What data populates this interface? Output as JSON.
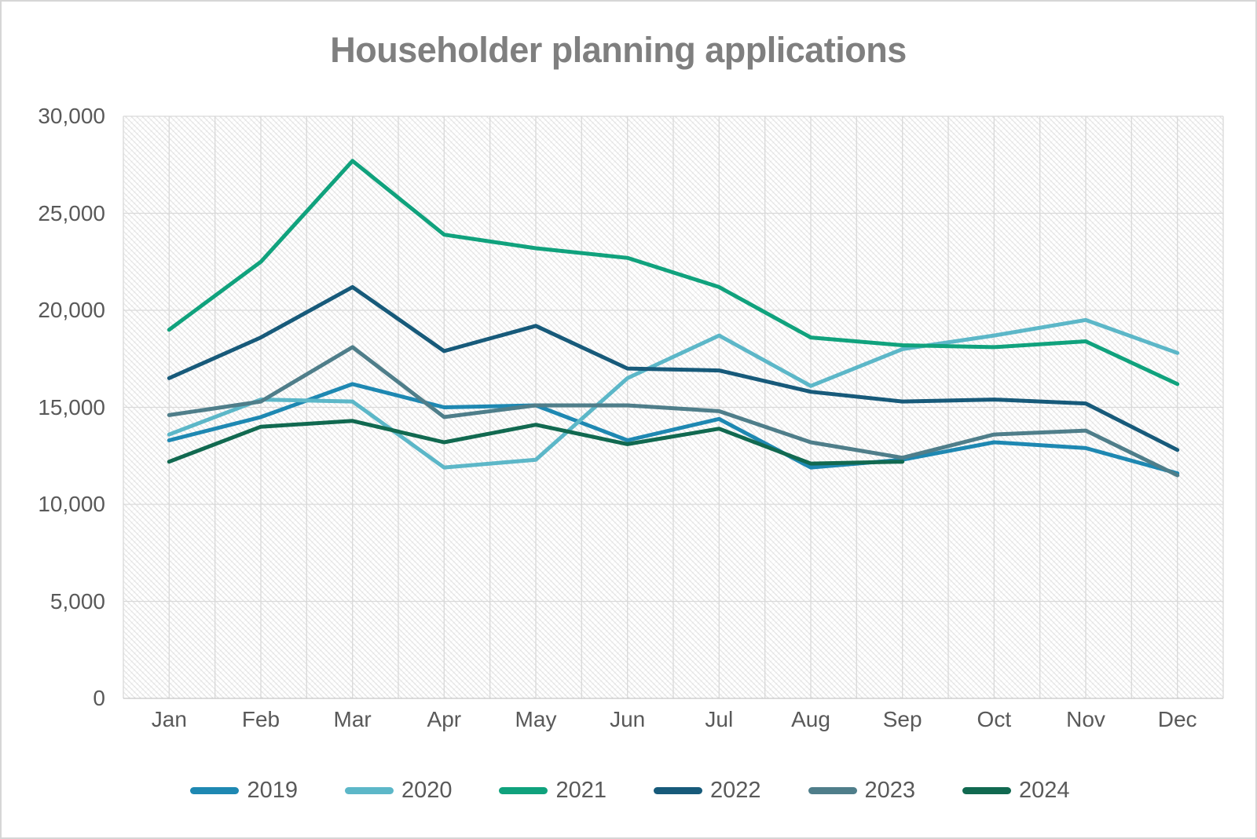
{
  "chart_data": {
    "type": "line",
    "title": "Householder planning applications",
    "categories": [
      "Jan",
      "Feb",
      "Mar",
      "Apr",
      "May",
      "Jun",
      "Jul",
      "Aug",
      "Sep",
      "Oct",
      "Nov",
      "Dec"
    ],
    "series": [
      {
        "name": "2019",
        "color": "#1e88b2",
        "values": [
          13300,
          14500,
          16200,
          15000,
          15100,
          13300,
          14400,
          11900,
          12300,
          13200,
          12900,
          11600
        ]
      },
      {
        "name": "2020",
        "color": "#5cb7c8",
        "values": [
          13600,
          15400,
          15300,
          11900,
          12300,
          16500,
          18700,
          16100,
          18000,
          18700,
          19500,
          17800
        ]
      },
      {
        "name": "2021",
        "color": "#10a27d",
        "values": [
          19000,
          22500,
          27700,
          23900,
          23200,
          22700,
          21200,
          18600,
          18200,
          18100,
          18400,
          16200
        ]
      },
      {
        "name": "2022",
        "color": "#175a7a",
        "values": [
          16500,
          18600,
          21200,
          17900,
          19200,
          17000,
          16900,
          15800,
          15300,
          15400,
          15200,
          12800
        ]
      },
      {
        "name": "2023",
        "color": "#4f7e8a",
        "values": [
          14600,
          15300,
          18100,
          14500,
          15100,
          15100,
          14800,
          13200,
          12400,
          13600,
          13800,
          11500
        ]
      },
      {
        "name": "2024",
        "color": "#116950",
        "values": [
          12200,
          14000,
          14300,
          13200,
          14100,
          13100,
          13900,
          12100,
          12200,
          null,
          null,
          null
        ]
      }
    ],
    "y_axis": {
      "ticks": [
        {
          "label": "0",
          "value": 0
        },
        {
          "label": "5,000",
          "value": 5000
        },
        {
          "label": "10,000",
          "value": 10000
        },
        {
          "label": "15,000",
          "value": 15000
        },
        {
          "label": "20,000",
          "value": 20000
        },
        {
          "label": "25,000",
          "value": 25000
        },
        {
          "label": "30,000",
          "value": 30000
        }
      ],
      "ylim": [
        0,
        30000
      ]
    },
    "legend_position": "bottom",
    "grid": {
      "horizontal": "major",
      "vertical": "half-category",
      "plot_background": "diagonal-hatch"
    }
  },
  "styles": {
    "title_color": "#7f7f7f",
    "tick_label_color": "#595959",
    "gridline_color": "#d9d9d9",
    "axis_line_color": "#c6c6c6",
    "page_border_color": "#d6d6d6",
    "line_width": 5
  }
}
